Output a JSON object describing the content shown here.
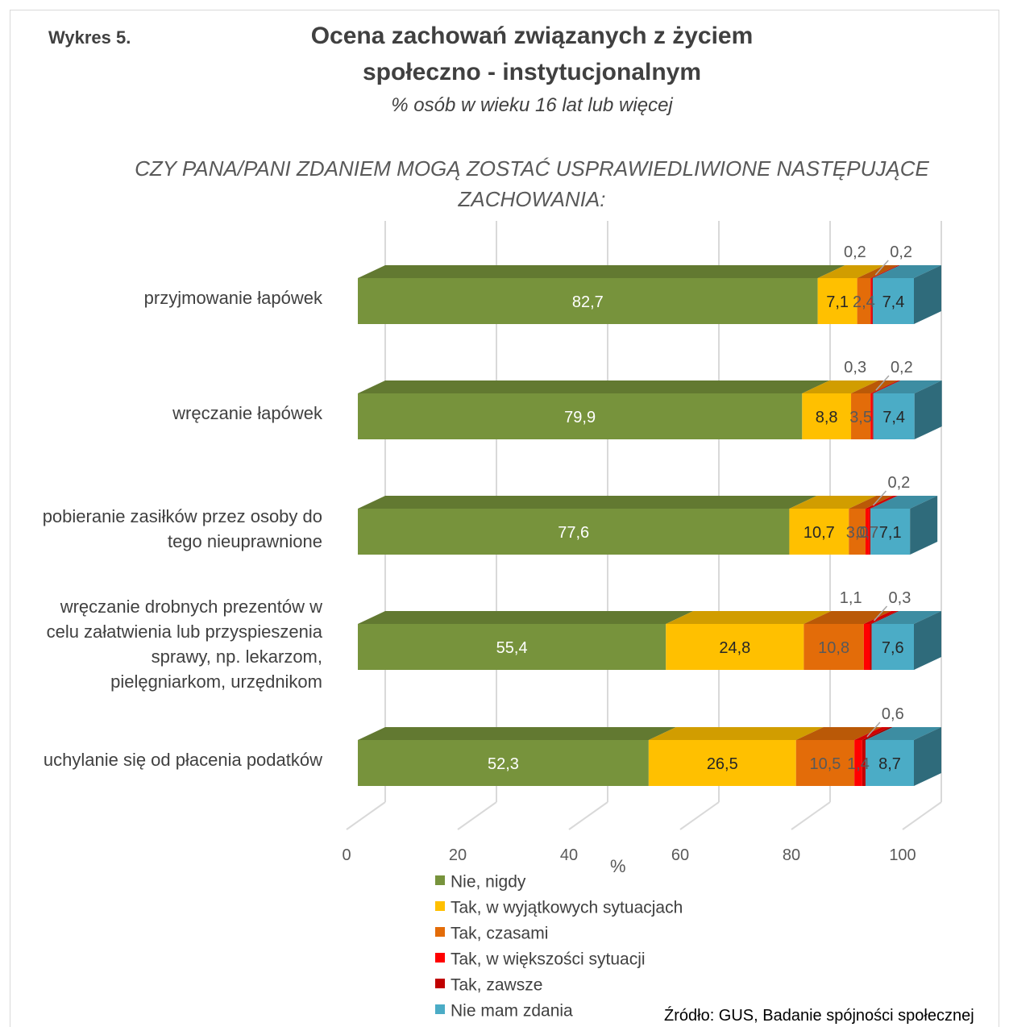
{
  "header": {
    "figure_label": "Wykres 5.",
    "title_line1": "Ocena zachowań związanych z życiem",
    "title_line2": "społeczno - instytucjonalnym",
    "subtitle": "% osób w wieku 16 lat lub więcej",
    "question_line1": "CZY PANA/PANI ZDANIEM MOGĄ ZOSTAĆ USPRAWIEDLIWIONE NASTĘPUJĄCE",
    "question_line2": "ZACHOWANIA:"
  },
  "chart_data": {
    "type": "bar",
    "orientation": "horizontal",
    "stacked": true,
    "style": "3d",
    "categories": [
      [
        "przyjmowanie łapówek"
      ],
      [
        "wręczanie łapówek"
      ],
      [
        "pobieranie zasiłków przez osoby do",
        "tego nieuprawnione"
      ],
      [
        "wręczanie drobnych prezentów w",
        "celu załatwienia lub przyspieszenia",
        "sprawy, np. lekarzom,",
        "pielęgniarkom, urzędnikom"
      ],
      [
        "uchylanie się od płacenia podatków"
      ]
    ],
    "series": [
      {
        "name": "Nie, nigdy",
        "color": "#77933c",
        "label_color": "#ffffff",
        "values": [
          82.7,
          79.9,
          77.6,
          55.4,
          52.3
        ],
        "labels": [
          "82,7",
          "79,9",
          "77,6",
          "55,4",
          "52,3"
        ]
      },
      {
        "name": "Tak, w wyjątkowych sytuacjach",
        "color": "#ffc000",
        "label_color": "#262626",
        "values": [
          7.1,
          8.8,
          10.7,
          24.8,
          26.5
        ],
        "labels": [
          "7,1",
          "8,8",
          "10,7",
          "24,8",
          "26,5"
        ]
      },
      {
        "name": "Tak, czasami",
        "color": "#e36c09",
        "label_color": "#595959",
        "values": [
          2.4,
          3.5,
          3.0,
          10.8,
          10.5
        ],
        "labels": [
          "2,4",
          "3,5",
          "3,0",
          "10,8",
          "10,5"
        ]
      },
      {
        "name": "Tak, w większości sytuacji",
        "color": "#ff0000",
        "label_color": "#595959",
        "values": [
          0.2,
          0.3,
          0.7,
          1.1,
          1.4
        ],
        "labels": [
          "0,2",
          "0,3",
          "0,7",
          "1,1",
          "1,4"
        ]
      },
      {
        "name": "Tak, zawsze",
        "color": "#c00000",
        "label_color": "#595959",
        "values": [
          0.2,
          0.2,
          0.2,
          0.3,
          0.6
        ],
        "labels": [
          "0,2",
          "0,2",
          "0,2",
          "0,3",
          "0,6"
        ]
      },
      {
        "name": "Nie mam zdania",
        "color": "#4bacc6",
        "label_color": "#262626",
        "values": [
          7.4,
          7.4,
          7.1,
          7.6,
          8.7
        ],
        "labels": [
          "7,4",
          "7,4",
          "7,1",
          "7,6",
          "8,7"
        ]
      }
    ],
    "xlabel": "%",
    "xlim": [
      0,
      100
    ],
    "xticks": [
      0,
      20,
      40,
      60,
      80,
      100
    ],
    "grid": true,
    "legend_position": "bottom"
  },
  "source": "Źródło: GUS, Badanie spójności społecznej"
}
